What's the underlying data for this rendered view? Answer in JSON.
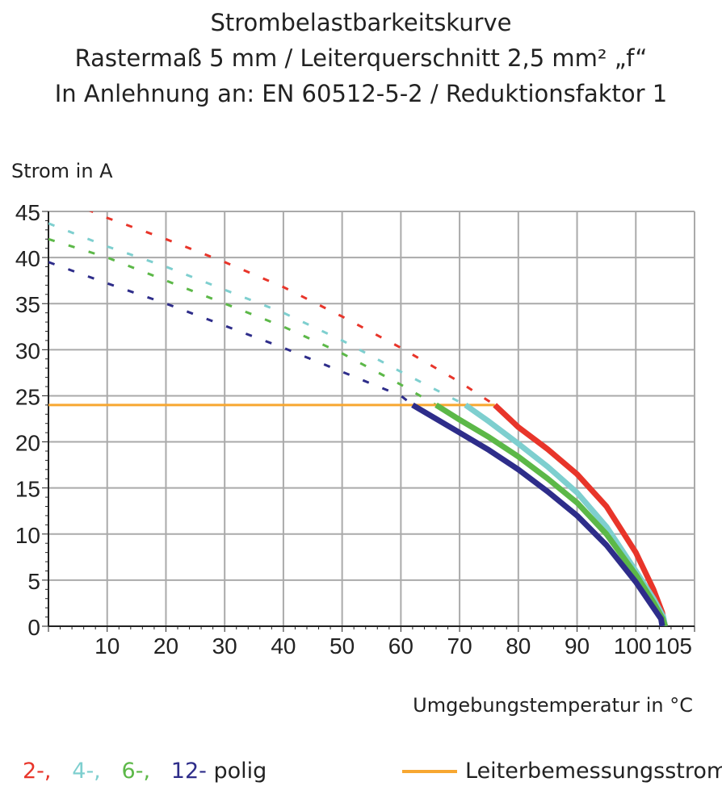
{
  "chart_data": {
    "type": "line",
    "title": [
      "Strombelastbarkeitskurve",
      "Rastermaß 5 mm / Leiterquerschnitt 2,5 mm² „f“",
      "In Anlehnung an: EN 60512-5-2 / Reduktionsfaktor 1"
    ],
    "ylabel": "Strom in A",
    "xlabel": "Umgebungstemperatur in °C",
    "xlim": [
      0,
      110
    ],
    "ylim": [
      0,
      45
    ],
    "grid": true,
    "x_tick_labels": [
      "10",
      "20",
      "30",
      "40",
      "50",
      "60",
      "70",
      "80",
      "90",
      "100",
      "105"
    ],
    "x_tick_values": [
      10,
      20,
      30,
      40,
      50,
      60,
      70,
      80,
      90,
      100,
      105
    ],
    "y_tick_labels": [
      "0",
      "5",
      "10",
      "15",
      "20",
      "25",
      "30",
      "35",
      "40",
      "45"
    ],
    "series": [
      {
        "name": "2-",
        "color": "#e8352a",
        "dashed": [
          [
            0,
            47
          ],
          [
            10,
            44.3
          ],
          [
            20,
            42
          ],
          [
            30,
            39.5
          ],
          [
            40,
            36.8
          ],
          [
            50,
            33.6
          ],
          [
            60,
            30.2
          ],
          [
            70,
            26.5
          ],
          [
            76,
            24
          ]
        ],
        "solid": [
          [
            76,
            24
          ],
          [
            80,
            21.6
          ],
          [
            85,
            19.2
          ],
          [
            90,
            16.5
          ],
          [
            95,
            13
          ],
          [
            100,
            8
          ],
          [
            103,
            4
          ],
          [
            104.5,
            1.5
          ],
          [
            105,
            0
          ]
        ]
      },
      {
        "name": "4-",
        "color": "#7ecfcf",
        "dashed": [
          [
            0,
            43.7
          ],
          [
            10,
            41.2
          ],
          [
            20,
            39
          ],
          [
            30,
            36.5
          ],
          [
            40,
            34
          ],
          [
            50,
            31
          ],
          [
            60,
            27.6
          ],
          [
            71,
            24
          ]
        ],
        "solid": [
          [
            71,
            24
          ],
          [
            75,
            22.2
          ],
          [
            80,
            19.8
          ],
          [
            85,
            17.3
          ],
          [
            90,
            14.5
          ],
          [
            95,
            10.8
          ],
          [
            100,
            6
          ],
          [
            103,
            3
          ],
          [
            104.7,
            1
          ],
          [
            105,
            0
          ]
        ]
      },
      {
        "name": "6-",
        "color": "#5cb848",
        "dashed": [
          [
            0,
            42
          ],
          [
            10,
            40
          ],
          [
            20,
            37.5
          ],
          [
            30,
            35
          ],
          [
            40,
            32.5
          ],
          [
            50,
            29.6
          ],
          [
            60,
            26.2
          ],
          [
            66,
            24
          ]
        ],
        "solid": [
          [
            66,
            24
          ],
          [
            70,
            22.4
          ],
          [
            75,
            20.5
          ],
          [
            80,
            18.4
          ],
          [
            85,
            16
          ],
          [
            90,
            13.4
          ],
          [
            95,
            10
          ],
          [
            100,
            5.6
          ],
          [
            103,
            2.6
          ],
          [
            104.6,
            0.8
          ],
          [
            105,
            0
          ]
        ]
      },
      {
        "name": "12-",
        "color": "#2e2d8a",
        "dashed": [
          [
            0,
            39.5
          ],
          [
            10,
            37.2
          ],
          [
            20,
            35
          ],
          [
            30,
            32.6
          ],
          [
            40,
            30.2
          ],
          [
            50,
            27.6
          ],
          [
            60,
            25
          ],
          [
            62,
            24
          ]
        ],
        "solid": [
          [
            62,
            24
          ],
          [
            70,
            21
          ],
          [
            75,
            19.1
          ],
          [
            80,
            17
          ],
          [
            85,
            14.6
          ],
          [
            90,
            12
          ],
          [
            95,
            8.8
          ],
          [
            100,
            4.8
          ],
          [
            103,
            2
          ],
          [
            104.3,
            0.8
          ],
          [
            104.5,
            0
          ]
        ]
      }
    ],
    "reference_line": {
      "name": "Leiterbemessungsstrom",
      "color": "#f7a731",
      "y": 24,
      "x": [
        0,
        76
      ]
    },
    "legend": {
      "placement": "bottom",
      "suffix": "polig",
      "items": [
        "2-,",
        "4-,",
        "6-,",
        "12-"
      ]
    }
  }
}
